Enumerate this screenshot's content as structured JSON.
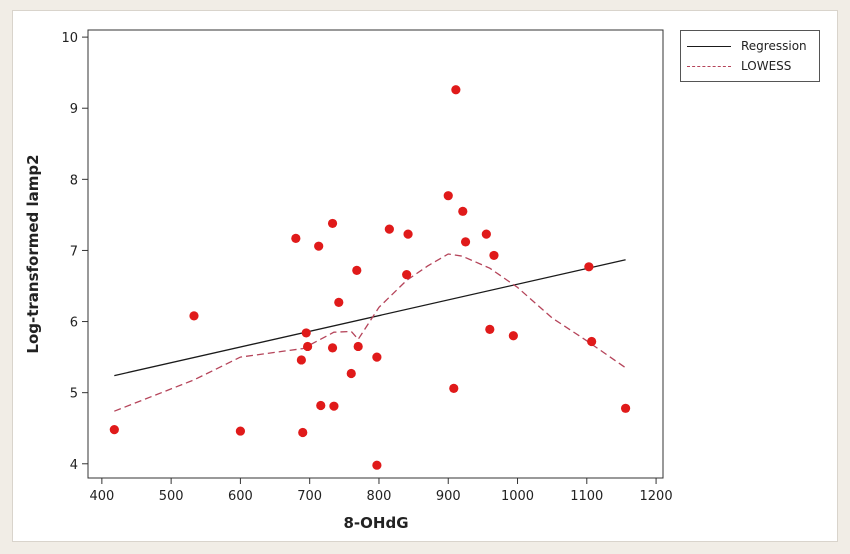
{
  "chart_data": {
    "type": "scatter",
    "title": "",
    "xlabel": "8-OHdG",
    "ylabel": "Log-transformed lamp2",
    "xlim": [
      380,
      1210
    ],
    "ylim": [
      3.8,
      10.1
    ],
    "xticks": [
      400,
      500,
      600,
      700,
      800,
      900,
      1000,
      1100,
      1200
    ],
    "yticks": [
      4,
      5,
      6,
      7,
      8,
      9,
      10
    ],
    "points": [
      [
        418,
        4.48
      ],
      [
        533,
        6.08
      ],
      [
        600,
        4.46
      ],
      [
        680,
        7.17
      ],
      [
        688,
        5.46
      ],
      [
        690,
        4.44
      ],
      [
        695,
        5.84
      ],
      [
        697,
        5.65
      ],
      [
        713,
        7.06
      ],
      [
        716,
        4.82
      ],
      [
        733,
        7.38
      ],
      [
        733,
        5.63
      ],
      [
        735,
        4.81
      ],
      [
        742,
        6.27
      ],
      [
        760,
        5.27
      ],
      [
        768,
        6.72
      ],
      [
        770,
        5.65
      ],
      [
        797,
        5.5
      ],
      [
        797,
        3.98
      ],
      [
        815,
        7.3
      ],
      [
        840,
        6.66
      ],
      [
        842,
        7.23
      ],
      [
        900,
        7.77
      ],
      [
        908,
        5.06
      ],
      [
        911,
        9.26
      ],
      [
        921,
        7.55
      ],
      [
        925,
        7.12
      ],
      [
        955,
        7.23
      ],
      [
        960,
        5.89
      ],
      [
        966,
        6.93
      ],
      [
        994,
        5.8
      ],
      [
        1103,
        6.77
      ],
      [
        1107,
        5.72
      ],
      [
        1156,
        4.78
      ]
    ],
    "series": [
      {
        "name": "Regression",
        "style": "solid",
        "color": "#1a1a1a",
        "x": [
          418,
          1156
        ],
        "y": [
          5.24,
          6.87
        ]
      },
      {
        "name": "LOWESS",
        "style": "dashed",
        "color": "#b5445a",
        "x": [
          418,
          533,
          600,
          660,
          690,
          735,
          760,
          770,
          800,
          840,
          870,
          900,
          920,
          960,
          1000,
          1050,
          1100,
          1156
        ],
        "y": [
          4.74,
          5.18,
          5.5,
          5.58,
          5.62,
          5.85,
          5.86,
          5.75,
          6.2,
          6.58,
          6.78,
          6.95,
          6.92,
          6.75,
          6.48,
          6.05,
          5.73,
          5.35
        ]
      }
    ],
    "point_color": "#e01a1a",
    "grid": false,
    "legend_position": "top-right"
  }
}
